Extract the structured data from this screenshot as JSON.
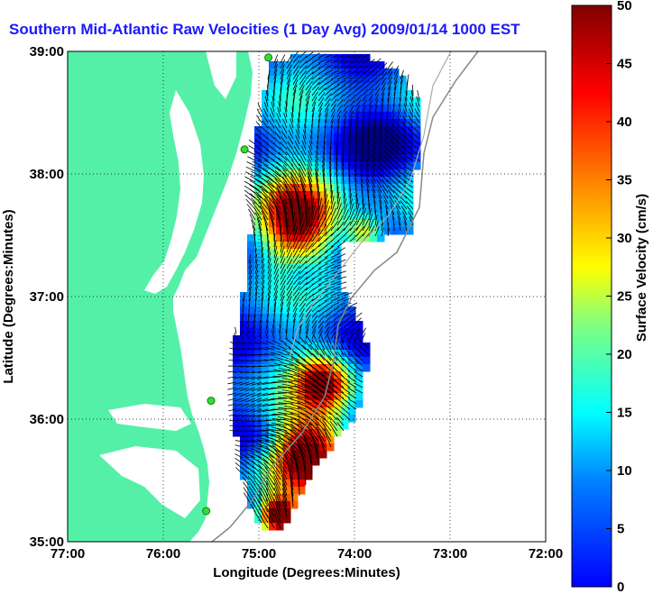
{
  "title": "Southern Mid-Atlantic Raw Velocities (1 Day Avg) 2009/01/14 1000 EST",
  "xaxis": {
    "label": "Longitude (Degrees:Minutes)",
    "ticks": [
      "77:00",
      "76:00",
      "75:00",
      "74:00",
      "73:00",
      "72:00"
    ],
    "range": [
      -77,
      -72
    ]
  },
  "yaxis": {
    "label": "Latitude (Degrees:Minutes)",
    "ticks": [
      "35:00",
      "36:00",
      "37:00",
      "38:00",
      "39:00"
    ],
    "range": [
      35,
      39
    ]
  },
  "colorbar": {
    "label": "Surface Velocity (cm/s)",
    "ticks": [
      "0",
      "5",
      "10",
      "15",
      "20",
      "25",
      "30",
      "35",
      "40",
      "45",
      "50"
    ],
    "range": [
      0,
      50
    ],
    "colormap": "jet"
  },
  "colors": {
    "land": "#55f0a8",
    "ocean": "#ffffff",
    "grid": "#000000",
    "title": "#1a1aff",
    "site_marker": "#33dd33"
  },
  "radar_sites": [
    {
      "lon": -74.9,
      "lat": 38.95
    },
    {
      "lon": -75.15,
      "lat": 38.2
    },
    {
      "lon": -75.5,
      "lat": 36.15
    },
    {
      "lon": -75.55,
      "lat": 35.25
    }
  ]
}
